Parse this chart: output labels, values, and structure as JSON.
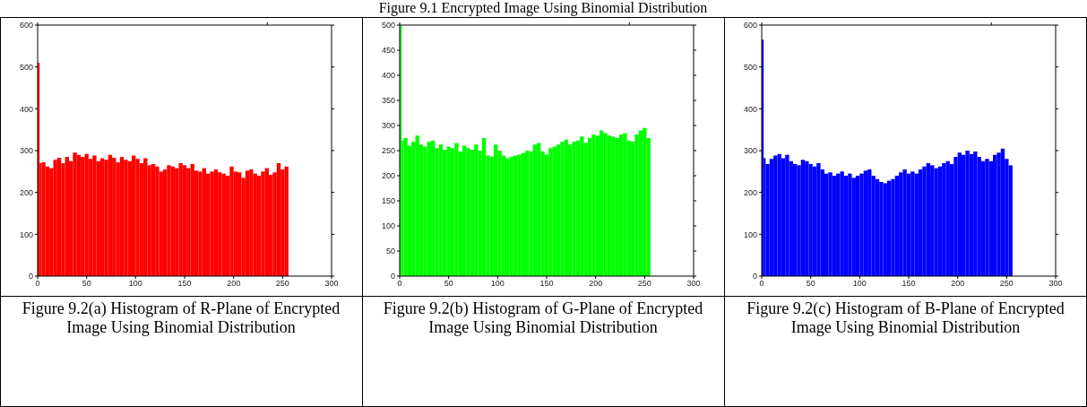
{
  "chart_data": [
    {
      "type": "histogram",
      "color": "#ff0000",
      "bins": [
        0,
        2,
        4,
        8,
        12,
        16,
        20,
        24,
        28,
        32,
        36,
        40,
        44,
        48,
        52,
        56,
        60,
        64,
        68,
        72,
        76,
        80,
        84,
        88,
        92,
        96,
        100,
        104,
        108,
        112,
        116,
        120,
        124,
        128,
        132,
        136,
        140,
        144,
        148,
        152,
        156,
        160,
        164,
        168,
        172,
        176,
        180,
        184,
        188,
        192,
        196,
        200,
        204,
        208,
        212,
        216,
        220,
        224,
        228,
        232,
        236,
        240,
        244,
        248,
        252,
        256
      ],
      "values": [
        510,
        270,
        272,
        262,
        258,
        278,
        283,
        270,
        285,
        275,
        295,
        290,
        285,
        292,
        280,
        288,
        275,
        282,
        278,
        290,
        283,
        272,
        285,
        278,
        275,
        288,
        280,
        270,
        282,
        265,
        268,
        262,
        250,
        255,
        265,
        262,
        258,
        270,
        265,
        258,
        268,
        252,
        250,
        258,
        245,
        250,
        255,
        248,
        245,
        240,
        262,
        250,
        248,
        235,
        252,
        255,
        245,
        240,
        250,
        258,
        242,
        248,
        270,
        255,
        262
      ],
      "xlim": [
        0,
        300
      ],
      "xticks": [
        0,
        50,
        100,
        150,
        200,
        250,
        300
      ],
      "ylim": [
        0,
        600
      ],
      "yticks": [
        0,
        100,
        200,
        300,
        400,
        500,
        600
      ],
      "annotations": [
        "Figure 9.2(a) Histogram of R-Plane of Encrypted Image Using Binomial Distribution"
      ]
    },
    {
      "type": "histogram",
      "title": "Figure 9.1 Encrypted Image Using Binomial Distribution",
      "color": "#00ff00",
      "bins": [
        0,
        2,
        4,
        8,
        12,
        16,
        20,
        24,
        28,
        32,
        36,
        40,
        44,
        48,
        52,
        56,
        60,
        64,
        68,
        72,
        76,
        80,
        84,
        88,
        92,
        96,
        100,
        104,
        108,
        112,
        116,
        120,
        124,
        128,
        132,
        136,
        140,
        144,
        148,
        152,
        156,
        160,
        164,
        168,
        172,
        176,
        180,
        184,
        188,
        192,
        196,
        200,
        204,
        208,
        212,
        216,
        220,
        224,
        228,
        232,
        236,
        240,
        244,
        248,
        252,
        256
      ],
      "values": [
        500,
        270,
        275,
        260,
        268,
        280,
        262,
        258,
        268,
        270,
        255,
        262,
        252,
        258,
        255,
        265,
        248,
        260,
        255,
        252,
        262,
        250,
        275,
        240,
        238,
        262,
        250,
        240,
        235,
        238,
        240,
        242,
        245,
        250,
        248,
        262,
        265,
        248,
        242,
        255,
        258,
        262,
        268,
        272,
        262,
        268,
        270,
        278,
        265,
        275,
        282,
        280,
        290,
        285,
        280,
        278,
        275,
        282,
        285,
        270,
        268,
        282,
        290,
        295,
        275
      ],
      "xlim": [
        0,
        300
      ],
      "xticks": [
        0,
        50,
        100,
        150,
        200,
        250,
        300
      ],
      "ylim": [
        0,
        500
      ],
      "yticks": [
        0,
        50,
        100,
        150,
        200,
        250,
        300,
        350,
        400,
        450,
        500
      ],
      "annotations": [
        "Figure 9.2(b) Histogram of G-Plane of Encrypted Image Using Binomial Distribution"
      ]
    },
    {
      "type": "histogram",
      "color": "#0000ff",
      "bins": [
        0,
        2,
        4,
        8,
        12,
        16,
        20,
        24,
        28,
        32,
        36,
        40,
        44,
        48,
        52,
        56,
        60,
        64,
        68,
        72,
        76,
        80,
        84,
        88,
        92,
        96,
        100,
        104,
        108,
        112,
        116,
        120,
        124,
        128,
        132,
        136,
        140,
        144,
        148,
        152,
        156,
        160,
        164,
        168,
        172,
        176,
        180,
        184,
        188,
        192,
        196,
        200,
        204,
        208,
        212,
        216,
        220,
        224,
        228,
        232,
        236,
        240,
        244,
        248,
        252,
        256
      ],
      "values": [
        565,
        282,
        268,
        280,
        288,
        292,
        282,
        290,
        275,
        268,
        265,
        278,
        275,
        268,
        262,
        270,
        255,
        245,
        248,
        240,
        245,
        250,
        240,
        245,
        235,
        240,
        245,
        252,
        255,
        240,
        232,
        225,
        222,
        228,
        232,
        240,
        248,
        255,
        245,
        250,
        245,
        255,
        262,
        270,
        265,
        258,
        262,
        270,
        275,
        268,
        285,
        295,
        290,
        300,
        292,
        298,
        285,
        275,
        280,
        275,
        290,
        295,
        305,
        280,
        265
      ],
      "xlim": [
        0,
        300
      ],
      "xticks": [
        0,
        50,
        100,
        150,
        200,
        250,
        300
      ],
      "ylim": [
        0,
        600
      ],
      "yticks": [
        0,
        100,
        200,
        300,
        400,
        500,
        600
      ],
      "annotations": [
        "Figure 9.2(c) Histogram of B-Plane of Encrypted Image Using Binomial Distribution"
      ]
    }
  ]
}
